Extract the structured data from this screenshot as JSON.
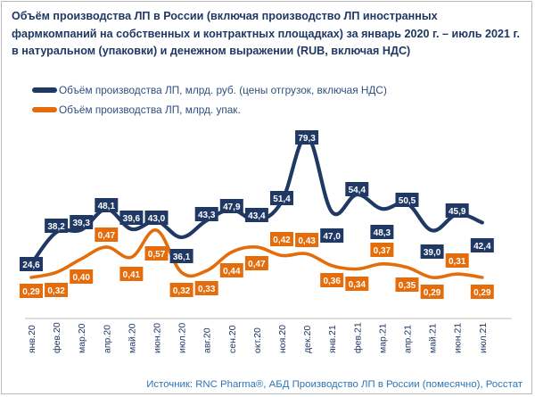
{
  "title": "Объём производства ЛП в России (включая производство ЛП иностранных фармкомпаний на собственных и контрактных площадках) за январь 2020 г. – июль 2021 г. в натуральном (упаковки) и денежном выражении (RUB, включая НДС)",
  "source": "Источник: RNC Pharma®, АБД Производство ЛП в России (помесячно), Росстат",
  "colors": {
    "series_rub": "#1f3864",
    "series_pack": "#e46c0a",
    "text": "#1f3864",
    "source": "#2e75b6"
  },
  "chart_data": {
    "type": "line",
    "categories": [
      "янв.20",
      "фев.20",
      "мар.20",
      "апр.20",
      "май.20",
      "июн.20",
      "июл.20",
      "авг.20",
      "сен.20",
      "окт.20",
      "ноя.20",
      "дек.20",
      "янв.21",
      "фев.21",
      "мар.21",
      "апр.21",
      "май.21",
      "июн.21",
      "июл.21"
    ],
    "series": [
      {
        "name": "Объём производства ЛП, млрд. руб. (цены отгрузок, включая НДС)",
        "color": "#1f3864",
        "values": [
          24.6,
          38.2,
          39.3,
          48.1,
          39.6,
          43.0,
          36.1,
          43.3,
          47.9,
          43.4,
          51.4,
          79.3,
          47.0,
          54.4,
          48.3,
          50.5,
          39.0,
          45.9,
          42.4
        ],
        "labels": [
          "24,6",
          "38,2",
          "39,3",
          "48,1",
          "39,6",
          "43,0",
          "36,1",
          "43,3",
          "47,9",
          "43,4",
          "51,4",
          "79,3",
          "47,0",
          "54,4",
          "48,3",
          "50,5",
          "39,0",
          "45,9",
          "42,4"
        ]
      },
      {
        "name": "Объём производства ЛП, млрд. упак.",
        "color": "#e46c0a",
        "values": [
          0.29,
          0.32,
          0.4,
          0.47,
          0.41,
          0.57,
          0.32,
          0.33,
          0.44,
          0.47,
          0.42,
          0.43,
          0.36,
          0.34,
          0.37,
          0.35,
          0.29,
          0.31,
          0.29
        ],
        "labels": [
          "0,29",
          "0,32",
          "0,40",
          "0,47",
          "0,41",
          "0,57",
          "0,32",
          "0,33",
          "0,44",
          "0,47",
          "0,42",
          "0,43",
          "0,36",
          "0,34",
          "0,37",
          "0,35",
          "0,29",
          "0,31",
          "0,29"
        ]
      }
    ],
    "grid": false
  }
}
